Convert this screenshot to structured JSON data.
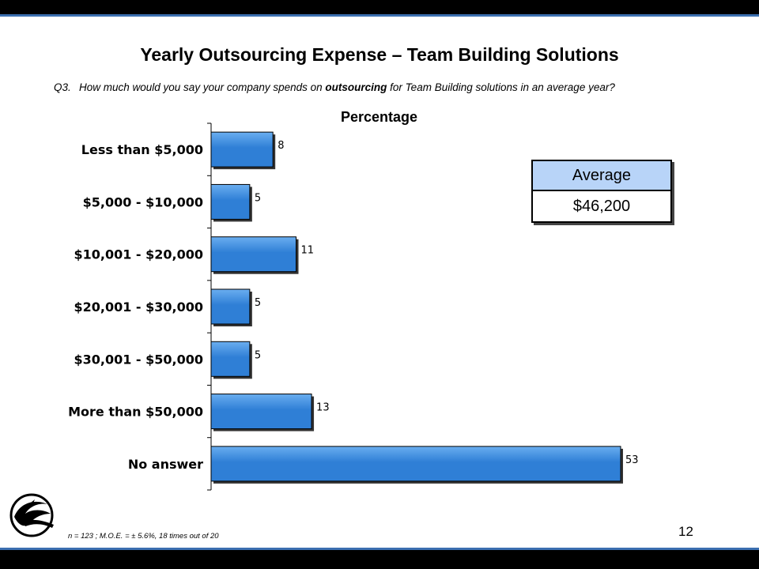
{
  "slide": {
    "title": "Yearly Outsourcing Expense – Team Building Solutions",
    "question_number": "Q3.",
    "question_pre": "How much would you say your company spends on ",
    "question_bold": "outsourcing",
    "question_post": " for Team Building solutions in an average year?",
    "average_label": "Average",
    "average_value": "$46,200",
    "footnote": "n = 123 ;  M.O.E. = ± 5.6%, 18 times out of 20",
    "page_number": "12"
  },
  "colors": {
    "bar_fill": "#2f7fd6",
    "bar_highlight": "#6aaef0",
    "average_header": "#b8d4f8",
    "frame": "#000000"
  },
  "chart_data": {
    "type": "bar",
    "orientation": "horizontal",
    "title": "Percentage",
    "categories": [
      "Less than $5,000",
      "$5,000 - $10,000",
      "$10,001 - $20,000",
      "$20,001 - $30,000",
      "$30,001 - $50,000",
      "More than $50,000",
      "No answer"
    ],
    "values": [
      8,
      5,
      11,
      5,
      5,
      13,
      53
    ],
    "data_labels": [
      "8",
      "5",
      "11",
      "5",
      "5",
      "13",
      "53"
    ],
    "xlim": [
      0,
      55
    ],
    "grid": false,
    "legend": "none"
  }
}
